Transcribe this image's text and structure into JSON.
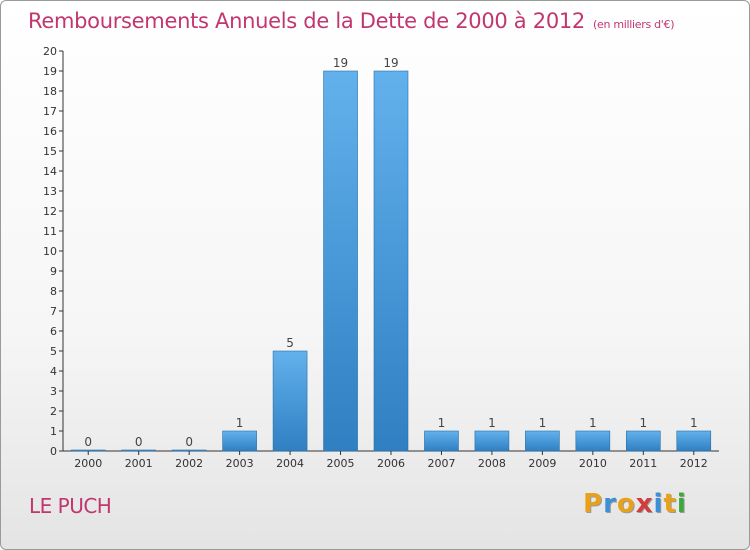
{
  "title": "Remboursements Annuels de la Dette de 2000 à 2012",
  "unit": "(en milliers d'€)",
  "commune": "LE PUCH",
  "logo": {
    "letters": [
      "P",
      "r",
      "o",
      "x",
      "i",
      "t",
      "i"
    ],
    "colors": [
      "#e8a21a",
      "#3d8fd6",
      "#e8a21a",
      "#d23c3c",
      "#3d8fd6",
      "#e8a21a",
      "#3aaa3a"
    ]
  },
  "colors": {
    "title": "#c2366f",
    "bar_top": "#63b1ec",
    "bar_bottom": "#2f7fc2"
  },
  "chart_data": {
    "type": "bar",
    "title": "Remboursements Annuels de la Dette de 2000 à 2012",
    "xlabel": "",
    "ylabel": "",
    "ylim": [
      0,
      20
    ],
    "grid": false,
    "categories": [
      "2000",
      "2001",
      "2002",
      "2003",
      "2004",
      "2005",
      "2006",
      "2007",
      "2008",
      "2009",
      "2010",
      "2011",
      "2012"
    ],
    "values": [
      0,
      0,
      0,
      1,
      5,
      19,
      19,
      1,
      1,
      1,
      1,
      1,
      1
    ],
    "data_labels": [
      "0",
      "0",
      "0",
      "1",
      "5",
      "19",
      "19",
      "1",
      "1",
      "1",
      "1",
      "1",
      "1"
    ],
    "yticks": [
      "0",
      "1",
      "2",
      "3",
      "4",
      "5",
      "6",
      "7",
      "8",
      "9",
      "10",
      "11",
      "12",
      "13",
      "14",
      "15",
      "16",
      "17",
      "18",
      "19",
      "20"
    ]
  }
}
